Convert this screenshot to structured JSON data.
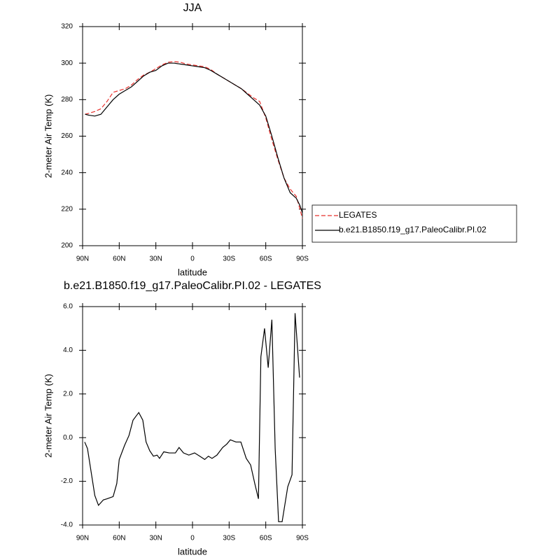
{
  "chart_data": [
    {
      "type": "line",
      "title": "JJA",
      "xlabel": "latitude",
      "ylabel": "2-meter Air Temp (K)",
      "xlim": [
        90,
        -90
      ],
      "xticks": [
        {
          "value": 90,
          "label": "90N"
        },
        {
          "value": 60,
          "label": "60N"
        },
        {
          "value": 30,
          "label": "30N"
        },
        0,
        {
          "value": -30,
          "label": "30S"
        },
        {
          "value": -60,
          "label": "60S"
        },
        {
          "value": -90,
          "label": "90S"
        }
      ],
      "ylim": [
        200,
        320
      ],
      "yticks": [
        200,
        220,
        240,
        260,
        280,
        300,
        320
      ],
      "legend": "outside-right",
      "series": [
        {
          "name": "LEGATES",
          "color": "#e8302c",
          "dash": true,
          "x": [
            88,
            85,
            80,
            75,
            70,
            65,
            60,
            55,
            50,
            45,
            40,
            35,
            30,
            25,
            20,
            15,
            10,
            5,
            0,
            -5,
            -10,
            -15,
            -20,
            -25,
            -30,
            -35,
            -40,
            -45,
            -50,
            -55,
            -60,
            -65,
            -70,
            -75,
            -80,
            -85,
            -88,
            -90
          ],
          "values": [
            272,
            272.5,
            273.5,
            275,
            279,
            284,
            285,
            286,
            288,
            291,
            293.5,
            295,
            297,
            299,
            300.5,
            300.8,
            300.5,
            299.5,
            299,
            298.5,
            298,
            296.5,
            294,
            292,
            290,
            288,
            286,
            283.5,
            281,
            279,
            270,
            258,
            247,
            237,
            231,
            227,
            220,
            215
          ]
        },
        {
          "name": "b.e21.B1850.f19_g17.PaleoCalibr.PI.02",
          "color": "#000000",
          "dash": false,
          "x": [
            88,
            85,
            80,
            75,
            70,
            65,
            60,
            55,
            50,
            45,
            40,
            35,
            30,
            25,
            20,
            15,
            10,
            5,
            0,
            -5,
            -10,
            -15,
            -20,
            -25,
            -30,
            -35,
            -40,
            -45,
            -50,
            -55,
            -60,
            -65,
            -70,
            -75,
            -80,
            -85,
            -88,
            -90
          ],
          "values": [
            272,
            271.5,
            271,
            272,
            276,
            280,
            283,
            285,
            287,
            290,
            293,
            295,
            296,
            298.5,
            300,
            300,
            299.5,
            299,
            298.5,
            298,
            297.5,
            296,
            294,
            292,
            290,
            288,
            286,
            283,
            280,
            277,
            271,
            260,
            248,
            237,
            229,
            226,
            222,
            218
          ]
        }
      ]
    },
    {
      "type": "line",
      "title": "b.e21.B1850.f19_g17.PaleoCalibr.PI.02 - LEGATES",
      "xlabel": "latitude",
      "ylabel": "2-meter Air Temp (K)",
      "xlim": [
        90,
        -90
      ],
      "xticks": [
        {
          "value": 90,
          "label": "90N"
        },
        {
          "value": 60,
          "label": "60N"
        },
        {
          "value": 30,
          "label": "30N"
        },
        0,
        {
          "value": -30,
          "label": "30S"
        },
        {
          "value": -60,
          "label": "60S"
        },
        {
          "value": -90,
          "label": "90S"
        }
      ],
      "ylim": [
        -4,
        6
      ],
      "yticks": [
        {
          "value": -4,
          "label": "-4.0"
        },
        {
          "value": -2,
          "label": "-2.0"
        },
        {
          "value": 0,
          "label": "0.0"
        },
        {
          "value": 2,
          "label": "2.0"
        },
        {
          "value": 4,
          "label": "4.0"
        },
        {
          "value": 6,
          "label": "6.0"
        }
      ],
      "series": [
        {
          "color": "#000000",
          "dash": false,
          "x": [
            88.3,
            86,
            80,
            77,
            73,
            70,
            65,
            62,
            60,
            55.6,
            52,
            48.7,
            44,
            40.7,
            38,
            35,
            32,
            29,
            27,
            23.5,
            19,
            14,
            11,
            7.4,
            3,
            -1.7,
            -6,
            -10,
            -13,
            -16,
            -20,
            -24.7,
            -28,
            -31,
            -35.6,
            -39.6,
            -44,
            -47.6,
            -51,
            -54,
            -56,
            -59,
            -62,
            -65,
            -67.7,
            -70.5,
            -73.4,
            -78,
            -81.5,
            -84,
            -87.7
          ],
          "values": [
            -0.2,
            -0.5,
            -2.65,
            -3.1,
            -2.85,
            -2.8,
            -2.7,
            -2.1,
            -1,
            -0.35,
            0.1,
            0.8,
            1.15,
            0.8,
            -0.2,
            -0.6,
            -0.85,
            -0.8,
            -0.95,
            -0.65,
            -0.7,
            -0.7,
            -0.45,
            -0.7,
            -0.8,
            -0.7,
            -0.85,
            -1,
            -0.85,
            -0.95,
            -0.8,
            -0.45,
            -0.3,
            -0.1,
            -0.2,
            -0.2,
            -0.95,
            -1.25,
            -2.1,
            -2.8,
            3.7,
            5,
            3.2,
            5.4,
            -0.5,
            -3.85,
            -3.85,
            -2.25,
            -1.7,
            5.7,
            2.75
          ]
        }
      ]
    }
  ]
}
